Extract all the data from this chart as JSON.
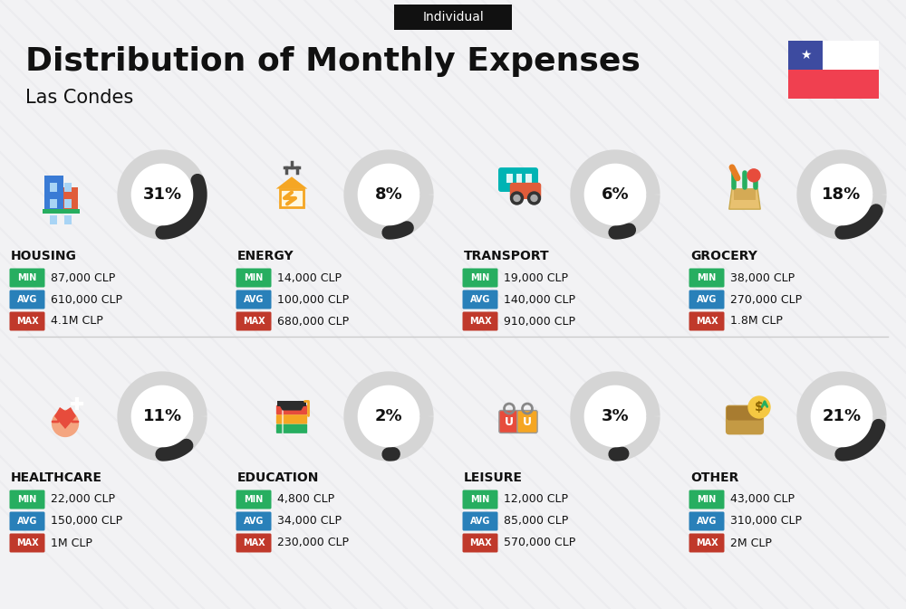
{
  "title": "Distribution of Monthly Expenses",
  "subtitle": "Las Condes",
  "tag": "Individual",
  "bg_color": "#f2f2f4",
  "categories": [
    {
      "name": "HOUSING",
      "pct": 31,
      "min": "87,000 CLP",
      "avg": "610,000 CLP",
      "max": "4.1M CLP",
      "icon": "housing",
      "row": 0,
      "col": 0
    },
    {
      "name": "ENERGY",
      "pct": 8,
      "min": "14,000 CLP",
      "avg": "100,000 CLP",
      "max": "680,000 CLP",
      "icon": "energy",
      "row": 0,
      "col": 1
    },
    {
      "name": "TRANSPORT",
      "pct": 6,
      "min": "19,000 CLP",
      "avg": "140,000 CLP",
      "max": "910,000 CLP",
      "icon": "transport",
      "row": 0,
      "col": 2
    },
    {
      "name": "GROCERY",
      "pct": 18,
      "min": "38,000 CLP",
      "avg": "270,000 CLP",
      "max": "1.8M CLP",
      "icon": "grocery",
      "row": 0,
      "col": 3
    },
    {
      "name": "HEALTHCARE",
      "pct": 11,
      "min": "22,000 CLP",
      "avg": "150,000 CLP",
      "max": "1M CLP",
      "icon": "healthcare",
      "row": 1,
      "col": 0
    },
    {
      "name": "EDUCATION",
      "pct": 2,
      "min": "4,800 CLP",
      "avg": "34,000 CLP",
      "max": "230,000 CLP",
      "icon": "education",
      "row": 1,
      "col": 1
    },
    {
      "name": "LEISURE",
      "pct": 3,
      "min": "12,000 CLP",
      "avg": "85,000 CLP",
      "max": "570,000 CLP",
      "icon": "leisure",
      "row": 1,
      "col": 2
    },
    {
      "name": "OTHER",
      "pct": 21,
      "min": "43,000 CLP",
      "avg": "310,000 CLP",
      "max": "2M CLP",
      "icon": "other",
      "row": 1,
      "col": 3
    }
  ],
  "min_color": "#27ae60",
  "avg_color": "#2980b9",
  "max_color": "#c0392b",
  "title_color": "#111111",
  "arc_dark": "#2c2c2c",
  "arc_light": "#d5d5d5",
  "tag_bg": "#111111",
  "tag_fg": "#ffffff",
  "flag_blue": "#3d4ba0",
  "flag_red": "#f04050",
  "stripe_color": "#e8e8ec"
}
